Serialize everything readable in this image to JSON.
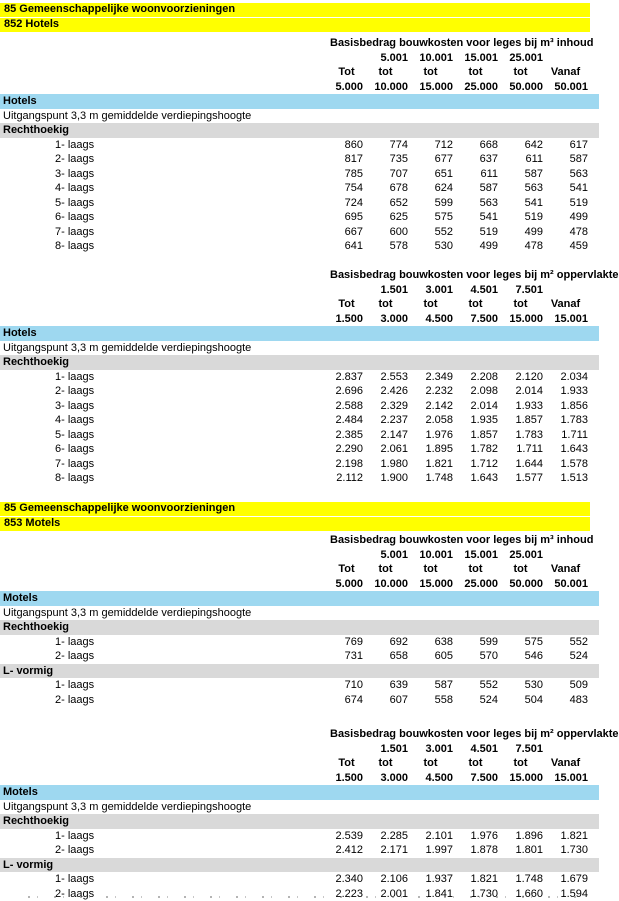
{
  "colors": {
    "banner_yellow": "#FFFF00",
    "group_band_blue": "#9ED8F0",
    "shape_band_gray": "#D9D9D9"
  },
  "banners": [
    {
      "line1": "85 Gemeenschappelijke woonvoorzieningen",
      "line2": "852 Hotels"
    },
    {
      "line1": "85 Gemeenschappelijke woonvoorzieningen",
      "line2": "853 Motels"
    }
  ],
  "tables": [
    {
      "unit_header": "Basisbedrag bouwkosten voor leges bij m³ inhoud",
      "bounds_upper": [
        "",
        "5.001",
        "10.001",
        "15.001",
        "25.001",
        ""
      ],
      "bounds_mid": [
        "Tot",
        "tot",
        "tot",
        "tot",
        "tot",
        "Vanaf"
      ],
      "bounds_lower": [
        "5.000",
        "10.000",
        "15.000",
        "25.000",
        "50.000",
        "50.001"
      ],
      "group_label": "Hotels",
      "note": "Uitgangspunt 3,3 m gemiddelde verdiepingshoogte",
      "shape_groups": [
        {
          "shape": "Rechthoekig",
          "rows": [
            {
              "label": "1- laags",
              "values": [
                "860",
                "774",
                "712",
                "668",
                "642",
                "617"
              ]
            },
            {
              "label": "2- laags",
              "values": [
                "817",
                "735",
                "677",
                "637",
                "611",
                "587"
              ]
            },
            {
              "label": "3- laags",
              "values": [
                "785",
                "707",
                "651",
                "611",
                "587",
                "563"
              ]
            },
            {
              "label": "4- laags",
              "values": [
                "754",
                "678",
                "624",
                "587",
                "563",
                "541"
              ]
            },
            {
              "label": "5- laags",
              "values": [
                "724",
                "652",
                "599",
                "563",
                "541",
                "519"
              ]
            },
            {
              "label": "6- laags",
              "values": [
                "695",
                "625",
                "575",
                "541",
                "519",
                "499"
              ]
            },
            {
              "label": "7- laags",
              "values": [
                "667",
                "600",
                "552",
                "519",
                "499",
                "478"
              ]
            },
            {
              "label": "8- laags",
              "values": [
                "641",
                "578",
                "530",
                "499",
                "478",
                "459"
              ]
            }
          ]
        }
      ]
    },
    {
      "unit_header": "Basisbedrag bouwkosten voor leges bij m² oppervlakte",
      "bounds_upper": [
        "",
        "1.501",
        "3.001",
        "4.501",
        "7.501",
        ""
      ],
      "bounds_mid": [
        "Tot",
        "tot",
        "tot",
        "tot",
        "tot",
        "Vanaf"
      ],
      "bounds_lower": [
        "1.500",
        "3.000",
        "4.500",
        "7.500",
        "15.000",
        "15.001"
      ],
      "group_label": "Hotels",
      "note": "Uitgangspunt 3,3 m gemiddelde verdiepingshoogte",
      "shape_groups": [
        {
          "shape": "Rechthoekig",
          "rows": [
            {
              "label": "1- laags",
              "values": [
                "2.837",
                "2.553",
                "2.349",
                "2.208",
                "2.120",
                "2.034"
              ]
            },
            {
              "label": "2- laags",
              "values": [
                "2.696",
                "2.426",
                "2.232",
                "2.098",
                "2.014",
                "1.933"
              ]
            },
            {
              "label": "3- laags",
              "values": [
                "2.588",
                "2.329",
                "2.142",
                "2.014",
                "1.933",
                "1.856"
              ]
            },
            {
              "label": "4- laags",
              "values": [
                "2.484",
                "2.237",
                "2.058",
                "1.935",
                "1.857",
                "1.783"
              ]
            },
            {
              "label": "5- laags",
              "values": [
                "2.385",
                "2.147",
                "1.976",
                "1.857",
                "1.783",
                "1.711"
              ]
            },
            {
              "label": "6- laags",
              "values": [
                "2.290",
                "2.061",
                "1.895",
                "1.782",
                "1.711",
                "1.643"
              ]
            },
            {
              "label": "7- laags",
              "values": [
                "2.198",
                "1.980",
                "1.821",
                "1.712",
                "1.644",
                "1.578"
              ]
            },
            {
              "label": "8- laags",
              "values": [
                "2.112",
                "1.900",
                "1.748",
                "1.643",
                "1.577",
                "1.513"
              ]
            }
          ]
        }
      ]
    },
    {
      "unit_header": "Basisbedrag bouwkosten voor leges bij m³ inhoud",
      "bounds_upper": [
        "",
        "5.001",
        "10.001",
        "15.001",
        "25.001",
        ""
      ],
      "bounds_mid": [
        "Tot",
        "tot",
        "tot",
        "tot",
        "tot",
        "Vanaf"
      ],
      "bounds_lower": [
        "5.000",
        "10.000",
        "15.000",
        "25.000",
        "50.000",
        "50.001"
      ],
      "group_label": "Motels",
      "note": "Uitgangspunt 3,3 m gemiddelde verdiepingshoogte",
      "shape_groups": [
        {
          "shape": "Rechthoekig",
          "rows": [
            {
              "label": "1- laags",
              "values": [
                "769",
                "692",
                "638",
                "599",
                "575",
                "552"
              ]
            },
            {
              "label": "2- laags",
              "values": [
                "731",
                "658",
                "605",
                "570",
                "546",
                "524"
              ]
            }
          ]
        },
        {
          "shape": "L- vormig",
          "rows": [
            {
              "label": "1- laags",
              "values": [
                "710",
                "639",
                "587",
                "552",
                "530",
                "509"
              ]
            },
            {
              "label": "2- laags",
              "values": [
                "674",
                "607",
                "558",
                "524",
                "504",
                "483"
              ]
            }
          ]
        }
      ]
    },
    {
      "unit_header": "Basisbedrag bouwkosten voor leges bij m² oppervlakte",
      "bounds_upper": [
        "",
        "1.501",
        "3.001",
        "4.501",
        "7.501",
        ""
      ],
      "bounds_mid": [
        "Tot",
        "tot",
        "tot",
        "tot",
        "tot",
        "Vanaf"
      ],
      "bounds_lower": [
        "1.500",
        "3.000",
        "4.500",
        "7.500",
        "15.000",
        "15.001"
      ],
      "group_label": "Motels",
      "note": "Uitgangspunt 3,3 m gemiddelde verdiepingshoogte",
      "shape_groups": [
        {
          "shape": "Rechthoekig",
          "rows": [
            {
              "label": "1- laags",
              "values": [
                "2.539",
                "2.285",
                "2.101",
                "1.976",
                "1.896",
                "1.821"
              ]
            },
            {
              "label": "2- laags",
              "values": [
                "2.412",
                "2.171",
                "1.997",
                "1.878",
                "1.801",
                "1.730"
              ]
            }
          ]
        },
        {
          "shape": "L- vormig",
          "rows": [
            {
              "label": "1- laags",
              "values": [
                "2.340",
                "2.106",
                "1.937",
                "1.821",
                "1.748",
                "1.679"
              ]
            },
            {
              "label": "2- laags",
              "values": [
                "2.223",
                "2.001",
                "1.841",
                "1.730",
                "1.660",
                "1.594"
              ]
            }
          ]
        }
      ]
    }
  ]
}
